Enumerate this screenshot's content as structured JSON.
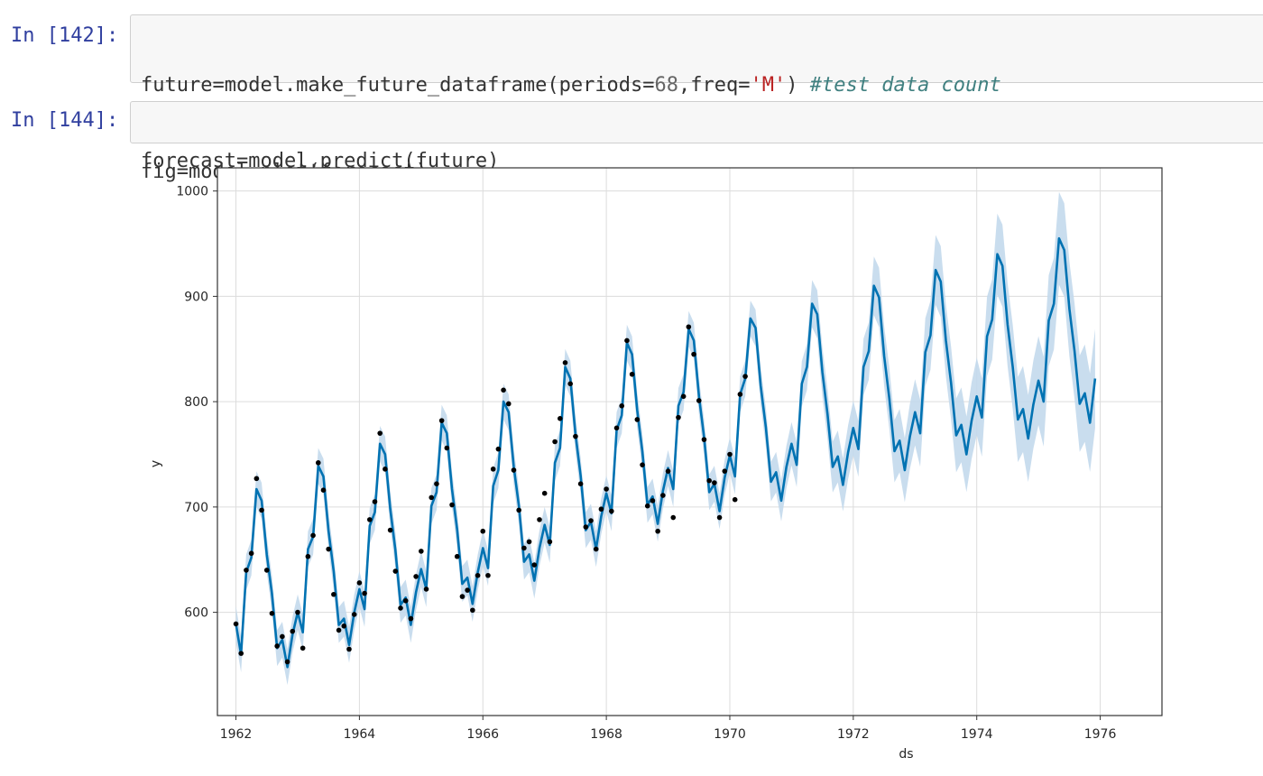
{
  "cells": [
    {
      "prompt": "In [142]:",
      "code": {
        "line1_a": "future=model.make_future_dataframe(periods=",
        "line1_num": "68",
        "line1_b": ",freq=",
        "line1_str": "'M'",
        "line1_c": ") ",
        "line1_comment": "#test data count",
        "line2": "forecast=model.predict(future)"
      }
    },
    {
      "prompt": "In [144]:",
      "code": {
        "line1": "fig=model.plot(forecast)"
      }
    }
  ],
  "chart_data": {
    "type": "line",
    "xlabel": "ds",
    "ylabel": "y",
    "xlim": [
      1961.7,
      1977.0
    ],
    "ylim": [
      502,
      1022
    ],
    "x_ticks": [
      1962,
      1964,
      1966,
      1968,
      1970,
      1972,
      1974,
      1976
    ],
    "y_ticks": [
      600,
      700,
      800,
      900,
      1000
    ],
    "grid": true,
    "colors": {
      "forecast_line": "#0072b2",
      "uncertainty_band": "#c3d9ec",
      "observed_points": "#000000",
      "grid": "#dcdcdc",
      "frame": "#333333"
    },
    "series": [
      {
        "name": "yhat",
        "start": "1962-01",
        "frequency": "monthly",
        "values": [
          589,
          560,
          638,
          652,
          717,
          706,
          655,
          618,
          566,
          574,
          548,
          579,
          600,
          581,
          660,
          672,
          739,
          729,
          677,
          639,
          588,
          594,
          569,
          600,
          622,
          603,
          682,
          695,
          760,
          750,
          698,
          659,
          607,
          614,
          588,
          619,
          641,
          622,
          701,
          714,
          780,
          770,
          717,
          679,
          627,
          633,
          608,
          638,
          661,
          642,
          720,
          735,
          800,
          790,
          738,
          701,
          648,
          655,
          630,
          661,
          683,
          664,
          742,
          756,
          833,
          822,
          769,
          730,
          678,
          686,
          660,
          691,
          713,
          694,
          773,
          787,
          856,
          845,
          792,
          753,
          702,
          710,
          684,
          715,
          737,
          717,
          796,
          809,
          869,
          858,
          805,
          766,
          714,
          722,
          696,
          728,
          749,
          729,
          807,
          822,
          879,
          870,
          815,
          776,
          724,
          733,
          706,
          738,
          760,
          740,
          817,
          833,
          893,
          883,
          828,
          788,
          738,
          748,
          721,
          752,
          775,
          755,
          833,
          848,
          910,
          899,
          843,
          803,
          753,
          763,
          735,
          767,
          790,
          770,
          847,
          863,
          925,
          914,
          858,
          818,
          768,
          778,
          750,
          782,
          805,
          785,
          862,
          878,
          940,
          929,
          873,
          833,
          783,
          793,
          765,
          797,
          820,
          800,
          877,
          893,
          955,
          944,
          888,
          848,
          798,
          808,
          780,
          822
        ]
      },
      {
        "name": "observed",
        "start": "1962-01",
        "frequency": "monthly",
        "values": [
          589,
          561,
          640,
          656,
          727,
          697,
          640,
          599,
          568,
          577,
          553,
          582,
          600,
          566,
          653,
          673,
          742,
          716,
          660,
          617,
          583,
          587,
          565,
          598,
          628,
          618,
          688,
          705,
          770,
          736,
          678,
          639,
          604,
          611,
          594,
          634,
          658,
          622,
          709,
          722,
          782,
          756,
          702,
          653,
          615,
          621,
          602,
          635,
          677,
          635,
          736,
          755,
          811,
          798,
          735,
          697,
          661,
          667,
          645,
          688,
          713,
          667,
          762,
          784,
          837,
          817,
          767,
          722,
          681,
          687,
          660,
          698,
          717,
          696,
          775,
          796,
          858,
          826,
          783,
          740,
          701,
          706,
          677,
          711,
          734,
          690,
          785,
          805,
          871,
          845,
          801,
          764,
          725,
          723,
          690,
          734,
          750,
          707,
          807,
          824
        ]
      }
    ]
  }
}
